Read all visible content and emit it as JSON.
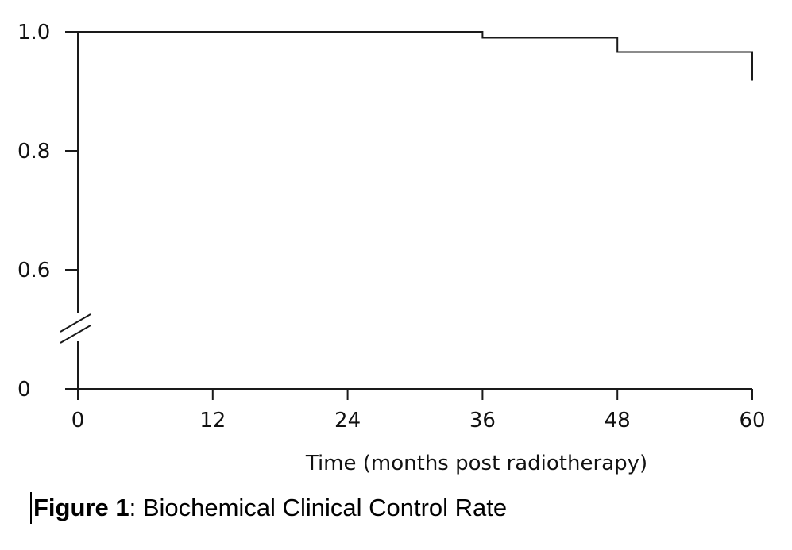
{
  "chart_data": {
    "type": "line",
    "subtype": "step (Kaplan-Meier)",
    "title": "",
    "xlabel": "Time (months post radiotherapy)",
    "ylabel": "",
    "x_ticks": [
      0,
      12,
      24,
      36,
      48,
      60
    ],
    "x_tick_labels": [
      "0",
      "12",
      "24",
      "36",
      "48",
      "60"
    ],
    "y_ticks": [
      0,
      0.6,
      0.8,
      1.0
    ],
    "y_tick_labels": [
      "0",
      "0.6",
      "0.8",
      "1.0"
    ],
    "xlim": [
      0,
      60
    ],
    "ylim": [
      0,
      1.0
    ],
    "y_axis_break": true,
    "grid": false,
    "series": [
      {
        "x": [
          0,
          36,
          48,
          60
        ],
        "y": [
          1.0,
          0.99,
          0.966,
          0.918
        ]
      }
    ],
    "color": "#1a1a1a"
  },
  "caption": {
    "label": "Figure 1",
    "text": ": Biochemical Clinical Control Rate"
  }
}
